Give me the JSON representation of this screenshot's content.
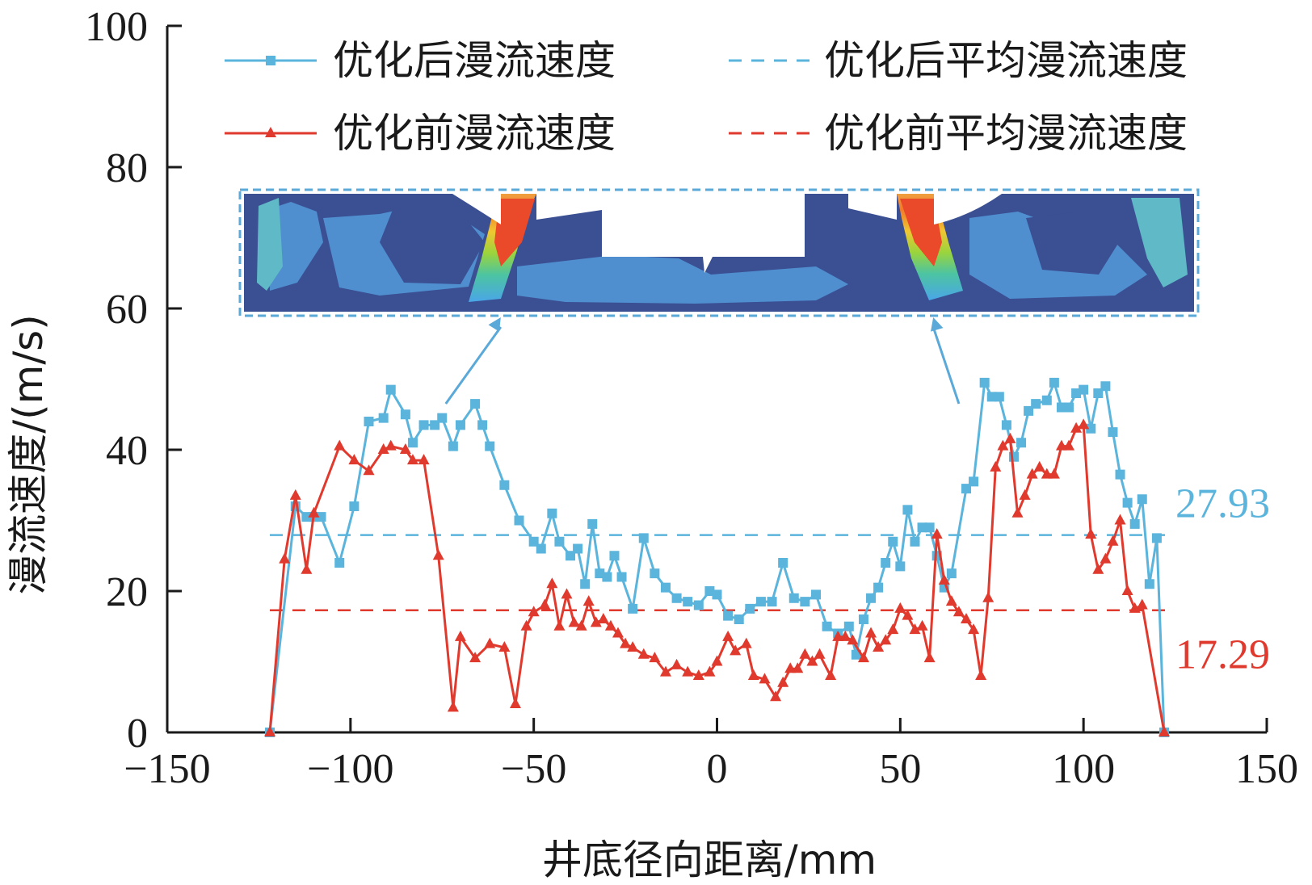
{
  "chart_data": {
    "type": "line",
    "xlabel": "井底径向距离/mm",
    "ylabel": "漫流速度/(m/s)",
    "xlim": [
      -150,
      150
    ],
    "ylim": [
      0,
      100
    ],
    "xticks": [
      "−150",
      "−100",
      "−50",
      "0",
      "50",
      "100",
      "150"
    ],
    "yticks": [
      "0",
      "20",
      "40",
      "60",
      "80",
      "100"
    ],
    "legend_position": "top",
    "legend": [
      {
        "label": "优化后漫流速度",
        "style": "line-square",
        "color": "#5ab4dc"
      },
      {
        "label": "优化后平均漫流速度",
        "style": "dashed",
        "color": "#5ab4dc"
      },
      {
        "label": "优化前漫流速度",
        "style": "line-triangle",
        "color": "#e03a2e"
      },
      {
        "label": "优化前平均漫流速度",
        "style": "dashed",
        "color": "#e03a2e"
      }
    ],
    "averages": [
      {
        "label": "27.93",
        "value": 27.93,
        "color": "#5ab4dc"
      },
      {
        "label": "17.29",
        "value": 17.29,
        "color": "#e03a2e"
      }
    ],
    "avg_x_range": [
      -122,
      122
    ],
    "inset": {
      "description_visible": false,
      "arrow_targets_x": [
        -59,
        59
      ]
    },
    "series": [
      {
        "name": "优化后漫流速度",
        "color": "#5ab4dc",
        "marker": "square",
        "points": [
          [
            -122,
            0
          ],
          [
            -115,
            32
          ],
          [
            -112,
            30.5
          ],
          [
            -110,
            30.5
          ],
          [
            -108,
            30.5
          ],
          [
            -103,
            24
          ],
          [
            -99,
            32
          ],
          [
            -95,
            44
          ],
          [
            -91,
            44.5
          ],
          [
            -89,
            48.5
          ],
          [
            -85,
            45
          ],
          [
            -83,
            41
          ],
          [
            -80,
            43.5
          ],
          [
            -77,
            43.5
          ],
          [
            -75,
            44.5
          ],
          [
            -72,
            40.5
          ],
          [
            -70,
            43.5
          ],
          [
            -66,
            46.5
          ],
          [
            -64,
            43.5
          ],
          [
            -62,
            40.5
          ],
          [
            -58,
            35
          ],
          [
            -54,
            30
          ],
          [
            -50,
            27
          ],
          [
            -48,
            26
          ],
          [
            -45,
            31
          ],
          [
            -43,
            27
          ],
          [
            -40,
            25
          ],
          [
            -38,
            26
          ],
          [
            -36,
            21
          ],
          [
            -34,
            29.5
          ],
          [
            -32,
            22.5
          ],
          [
            -30,
            22
          ],
          [
            -28,
            25
          ],
          [
            -26,
            22
          ],
          [
            -23,
            17.5
          ],
          [
            -20,
            27.5
          ],
          [
            -17,
            22.5
          ],
          [
            -14,
            20.5
          ],
          [
            -11,
            19
          ],
          [
            -8,
            18.5
          ],
          [
            -5,
            18
          ],
          [
            -2,
            20
          ],
          [
            0,
            19.5
          ],
          [
            3,
            16.5
          ],
          [
            6,
            16
          ],
          [
            9,
            17.5
          ],
          [
            12,
            18.5
          ],
          [
            15,
            18.5
          ],
          [
            18,
            24
          ],
          [
            21,
            19
          ],
          [
            24,
            18.5
          ],
          [
            27,
            19.5
          ],
          [
            30,
            15
          ],
          [
            33,
            14
          ],
          [
            36,
            15
          ],
          [
            38,
            11
          ],
          [
            40,
            16
          ],
          [
            42,
            19
          ],
          [
            44,
            20.5
          ],
          [
            46,
            24
          ],
          [
            48,
            27
          ],
          [
            50,
            23.5
          ],
          [
            52,
            31.5
          ],
          [
            54,
            27
          ],
          [
            56,
            29
          ],
          [
            58,
            29
          ],
          [
            60,
            25
          ],
          [
            62,
            20.5
          ],
          [
            64,
            22.5
          ],
          [
            68,
            34.5
          ],
          [
            70,
            35.5
          ],
          [
            73,
            49.5
          ],
          [
            75,
            47.5
          ],
          [
            77,
            47.5
          ],
          [
            79,
            43.5
          ],
          [
            81,
            39
          ],
          [
            83,
            41
          ],
          [
            85,
            45.5
          ],
          [
            87,
            46.5
          ],
          [
            90,
            47
          ],
          [
            92,
            49.5
          ],
          [
            94,
            46
          ],
          [
            96,
            46
          ],
          [
            98,
            48
          ],
          [
            100,
            48.5
          ],
          [
            102,
            43
          ],
          [
            104,
            48
          ],
          [
            106,
            49
          ],
          [
            108,
            42.5
          ],
          [
            110,
            36.5
          ],
          [
            112,
            32.5
          ],
          [
            114,
            29.5
          ],
          [
            116,
            33
          ],
          [
            118,
            21
          ],
          [
            120,
            27.5
          ],
          [
            122,
            0
          ]
        ]
      },
      {
        "name": "优化前漫流速度",
        "color": "#e03a2e",
        "marker": "triangle",
        "points": [
          [
            -122,
            0
          ],
          [
            -118,
            24.5
          ],
          [
            -115,
            33.5
          ],
          [
            -112,
            23
          ],
          [
            -110,
            31
          ],
          [
            -103,
            40.5
          ],
          [
            -99,
            38.5
          ],
          [
            -95,
            37
          ],
          [
            -91,
            40
          ],
          [
            -89,
            40.5
          ],
          [
            -85,
            40
          ],
          [
            -83,
            38.5
          ],
          [
            -80,
            38.5
          ],
          [
            -76,
            25
          ],
          [
            -72,
            3.5
          ],
          [
            -70,
            13.5
          ],
          [
            -66,
            10.5
          ],
          [
            -62,
            12.5
          ],
          [
            -58,
            12
          ],
          [
            -55,
            4
          ],
          [
            -52,
            15
          ],
          [
            -50,
            17
          ],
          [
            -47,
            18
          ],
          [
            -45,
            21
          ],
          [
            -43,
            15
          ],
          [
            -41,
            19.5
          ],
          [
            -39,
            15.5
          ],
          [
            -37,
            15
          ],
          [
            -35,
            18.5
          ],
          [
            -33,
            15.5
          ],
          [
            -31,
            16
          ],
          [
            -29,
            15
          ],
          [
            -27,
            14
          ],
          [
            -25,
            12.5
          ],
          [
            -23,
            12
          ],
          [
            -20,
            11
          ],
          [
            -17,
            10.5
          ],
          [
            -14,
            8.5
          ],
          [
            -11,
            9.5
          ],
          [
            -8,
            8.5
          ],
          [
            -5,
            8
          ],
          [
            -2,
            8.5
          ],
          [
            0,
            10
          ],
          [
            3,
            13.5
          ],
          [
            5,
            11.5
          ],
          [
            8,
            12.5
          ],
          [
            10,
            8
          ],
          [
            13,
            7.5
          ],
          [
            16,
            5
          ],
          [
            18,
            7
          ],
          [
            20,
            9
          ],
          [
            22,
            9
          ],
          [
            24,
            11
          ],
          [
            26,
            10
          ],
          [
            28,
            11
          ],
          [
            31,
            8
          ],
          [
            33,
            13.5
          ],
          [
            35,
            13.5
          ],
          [
            37,
            13
          ],
          [
            40,
            10.5
          ],
          [
            42,
            14
          ],
          [
            44,
            12
          ],
          [
            46,
            13
          ],
          [
            48,
            14.5
          ],
          [
            50,
            17.5
          ],
          [
            52,
            16.5
          ],
          [
            54,
            14.5
          ],
          [
            56,
            15
          ],
          [
            58,
            10.5
          ],
          [
            60,
            28
          ],
          [
            62,
            21.5
          ],
          [
            64,
            18.5
          ],
          [
            66,
            17
          ],
          [
            68,
            16
          ],
          [
            70,
            14.5
          ],
          [
            72,
            8
          ],
          [
            74,
            19
          ],
          [
            76,
            37.5
          ],
          [
            78,
            40.5
          ],
          [
            80,
            41.5
          ],
          [
            82,
            31
          ],
          [
            84,
            33.5
          ],
          [
            86,
            36.5
          ],
          [
            88,
            37.5
          ],
          [
            90,
            36.5
          ],
          [
            92,
            36.5
          ],
          [
            94,
            40.5
          ],
          [
            96,
            40.5
          ],
          [
            98,
            43
          ],
          [
            100,
            43.5
          ],
          [
            102,
            28
          ],
          [
            104,
            23
          ],
          [
            106,
            24.5
          ],
          [
            108,
            27
          ],
          [
            110,
            30
          ],
          [
            112,
            20
          ],
          [
            114,
            17.5
          ],
          [
            116,
            18
          ],
          [
            122,
            0
          ]
        ]
      }
    ]
  }
}
